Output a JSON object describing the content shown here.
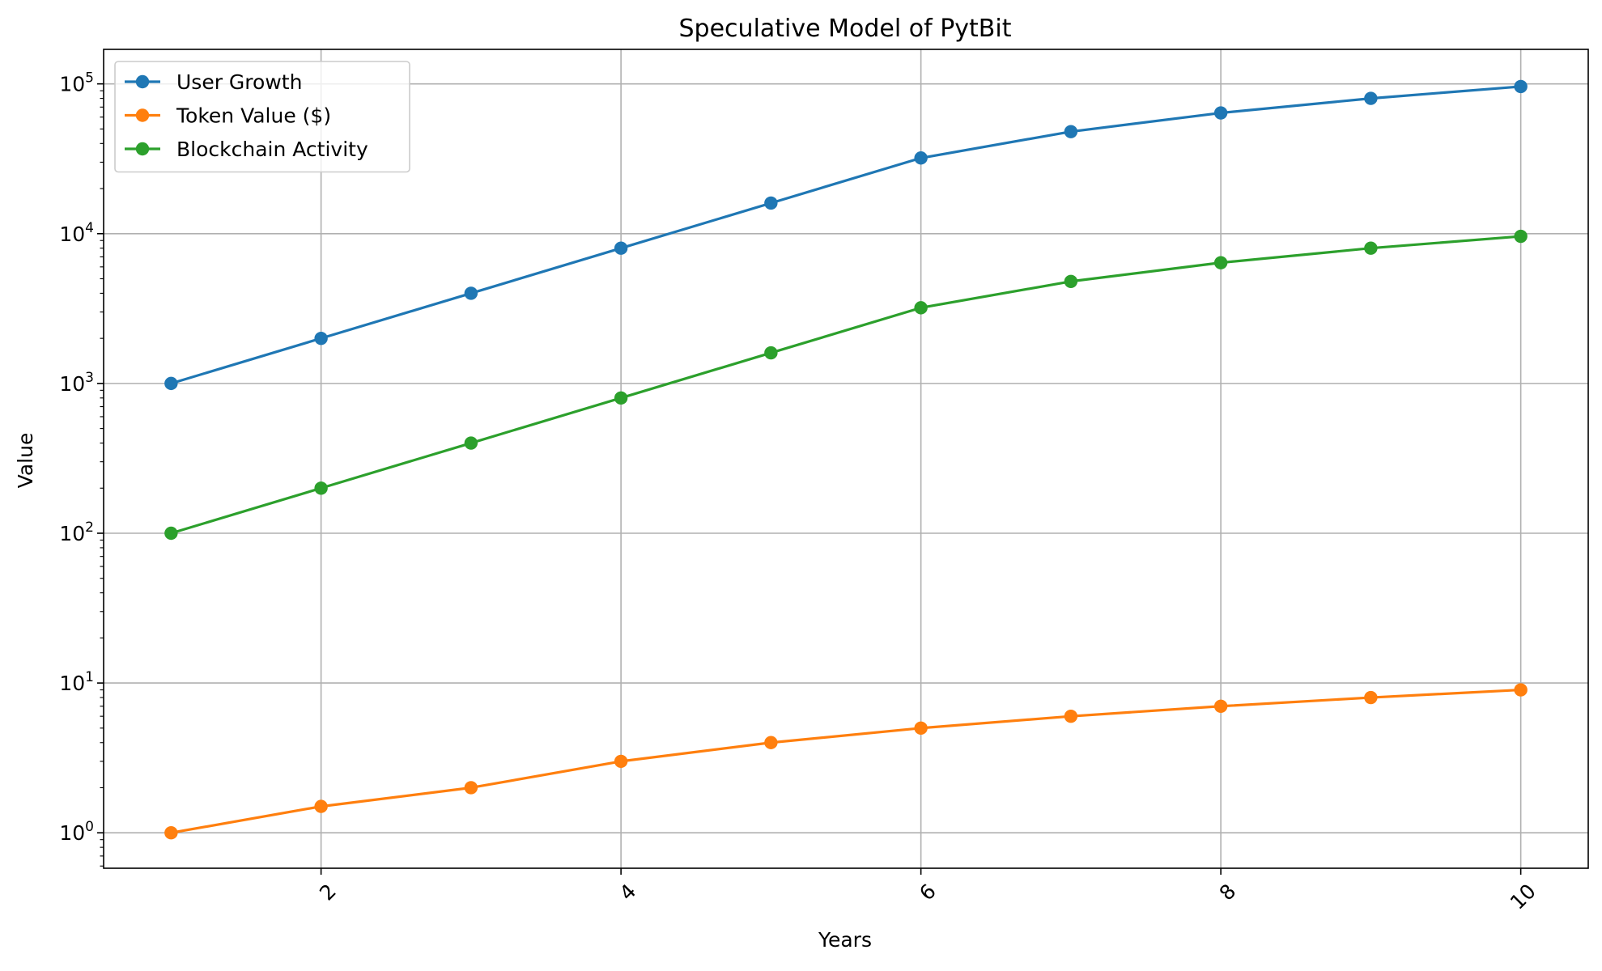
{
  "chart_data": {
    "type": "line",
    "title": "Speculative Model of PytBit",
    "xlabel": "Years",
    "ylabel": "Value",
    "x": [
      1,
      2,
      3,
      4,
      5,
      6,
      7,
      8,
      9,
      10
    ],
    "xlim": [
      0.55,
      10.45
    ],
    "ylim": [
      0.58,
      170000
    ],
    "yscale": "log",
    "grid": true,
    "legend_position": "upper-left",
    "x_ticks": [
      "2",
      "4",
      "6",
      "8",
      "10"
    ],
    "x_tick_values": [
      2,
      4,
      6,
      8,
      10
    ],
    "x_tick_rotation": 45,
    "y_ticks": [
      {
        "value": 1,
        "base": "10",
        "exp": "0"
      },
      {
        "value": 10,
        "base": "10",
        "exp": "1"
      },
      {
        "value": 100,
        "base": "10",
        "exp": "2"
      },
      {
        "value": 1000,
        "base": "10",
        "exp": "3"
      },
      {
        "value": 10000,
        "base": "10",
        "exp": "4"
      },
      {
        "value": 100000,
        "base": "10",
        "exp": "5"
      }
    ],
    "series": [
      {
        "name": "User Growth",
        "color": "#1f77b4",
        "marker": "circle",
        "values": [
          1000,
          2000,
          4000,
          8000,
          16000,
          32000,
          48000,
          64000,
          80000,
          96000
        ]
      },
      {
        "name": "Token Value ($)",
        "color": "#ff7f0e",
        "marker": "circle",
        "values": [
          1,
          1.5,
          2,
          3,
          4,
          5,
          6,
          7,
          8,
          9
        ]
      },
      {
        "name": "Blockchain Activity",
        "color": "#2ca02c",
        "marker": "circle",
        "values": [
          100,
          200,
          400,
          800,
          1600,
          3200,
          4800,
          6400,
          8000,
          9600
        ]
      }
    ]
  }
}
